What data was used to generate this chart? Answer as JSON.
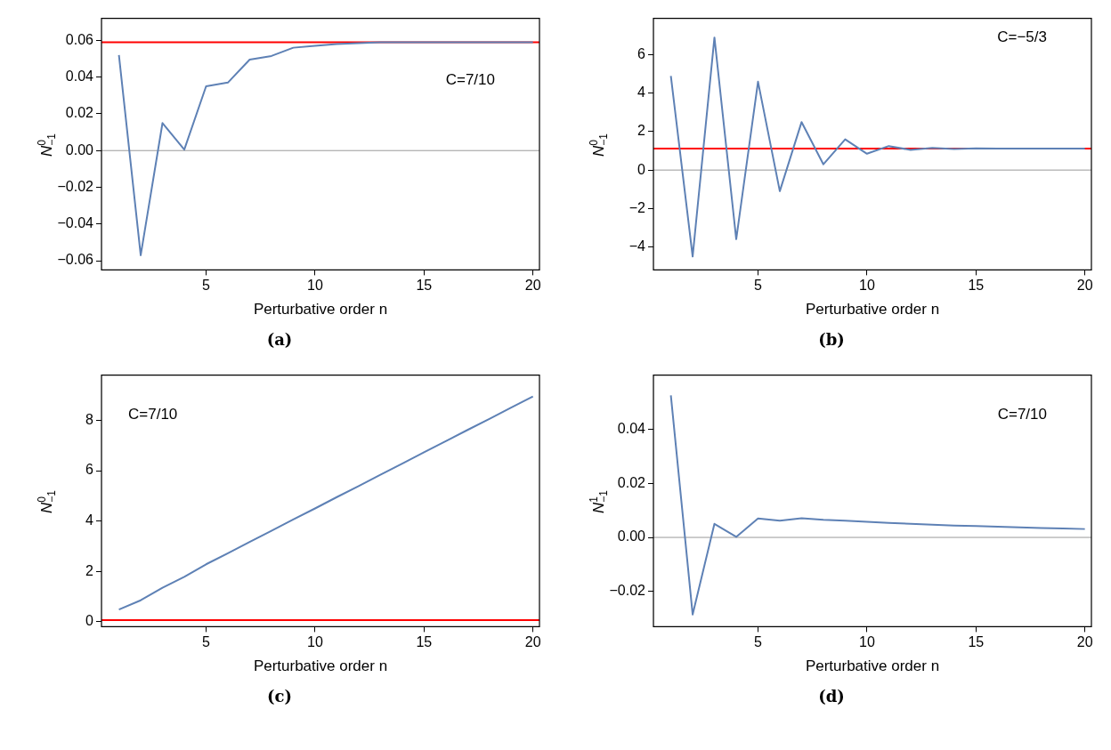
{
  "chart_data": [
    {
      "type": "line",
      "x": [
        1,
        2,
        3,
        4,
        5,
        6,
        7,
        8,
        9,
        10,
        11,
        12,
        13,
        14,
        15,
        16,
        17,
        18,
        19,
        20
      ],
      "xlabel": "Perturbative order n",
      "ylabel": "N$^{0}$$_{−1}$",
      "xlim": [
        0.2,
        20.3
      ],
      "xticks": [
        5,
        10,
        15,
        20
      ],
      "ylim": [
        -0.065,
        0.072
      ],
      "yticks": [
        {
          "value": -0.06,
          "label": "−0.06"
        },
        {
          "value": -0.04,
          "label": "−0.04"
        },
        {
          "value": -0.02,
          "label": "−0.02"
        },
        {
          "value": 0,
          "label": "0.00"
        },
        0.02,
        0.04,
        0.06
      ],
      "grid": false,
      "legend": false,
      "series": [
        {
          "color": "#5e81b5",
          "values": [
            0.052,
            -0.057,
            0.015,
            0.0005,
            0.035,
            0.037,
            0.0495,
            0.0515,
            0.056,
            0.057,
            0.058,
            0.0585,
            0.059,
            0.059,
            0.059,
            0.059,
            0.059,
            0.059,
            0.059,
            0.059
          ]
        }
      ],
      "ref_lines": [
        {
          "axis": "y",
          "value": 0,
          "color": "#999999"
        },
        {
          "axis": "y",
          "value": 0.059,
          "color": "#ff0000"
        }
      ],
      "annotations": [
        "C=7/10",
        "(a)"
      ]
    },
    {
      "type": "line",
      "x": [
        1,
        2,
        3,
        4,
        5,
        6,
        7,
        8,
        9,
        10,
        11,
        12,
        13,
        14,
        15,
        16,
        17,
        18,
        19,
        20
      ],
      "xlabel": "Perturbative order n",
      "ylabel": "N$^{0}$$_{−1}$",
      "xlim": [
        0.2,
        20.3
      ],
      "xticks": [
        5,
        10,
        15,
        20
      ],
      "ylim": [
        -5.2,
        7.9
      ],
      "yticks": [
        {
          "value": -4,
          "label": "−4"
        },
        {
          "value": -2,
          "label": "−2"
        },
        0,
        2,
        4,
        6
      ],
      "grid": false,
      "legend": false,
      "series": [
        {
          "color": "#5e81b5",
          "values": [
            4.9,
            -4.5,
            6.9,
            -3.6,
            4.6,
            -1.1,
            2.5,
            0.3,
            1.6,
            0.85,
            1.25,
            1.05,
            1.15,
            1.1,
            1.13,
            1.12,
            1.12,
            1.12,
            1.12,
            1.12
          ]
        }
      ],
      "ref_lines": [
        {
          "axis": "y",
          "value": 0,
          "color": "#999999"
        },
        {
          "axis": "y",
          "value": 1.12,
          "color": "#ff0000"
        }
      ],
      "annotations": [
        "C=−5/3",
        "(b)"
      ]
    },
    {
      "type": "line",
      "x": [
        1,
        2,
        3,
        4,
        5,
        6,
        7,
        8,
        9,
        10,
        11,
        12,
        13,
        14,
        15,
        16,
        17,
        18,
        19,
        20
      ],
      "xlabel": "Perturbative order n",
      "ylabel": "N$^{0}$$_{−1}$",
      "xlim": [
        0.2,
        20.3
      ],
      "xticks": [
        5,
        10,
        15,
        20
      ],
      "ylim": [
        -0.2,
        9.8
      ],
      "yticks": [
        0,
        2,
        4,
        6,
        8
      ],
      "grid": false,
      "legend": false,
      "series": [
        {
          "color": "#5e81b5",
          "values": [
            0.48,
            0.85,
            1.35,
            1.78,
            2.28,
            2.72,
            3.17,
            3.61,
            4.06,
            4.5,
            4.95,
            5.39,
            5.84,
            6.28,
            6.73,
            7.17,
            7.62,
            8.06,
            8.51,
            8.95
          ]
        }
      ],
      "ref_lines": [
        {
          "axis": "y",
          "value": 0.06,
          "color": "#ff0000"
        }
      ],
      "annotations": [
        "C=7/10",
        "(c)"
      ]
    },
    {
      "type": "line",
      "x": [
        1,
        2,
        3,
        4,
        5,
        6,
        7,
        8,
        9,
        10,
        11,
        12,
        13,
        14,
        15,
        16,
        17,
        18,
        19,
        20
      ],
      "xlabel": "Perturbative order n",
      "ylabel": "N$^{1}$$_{−1}$",
      "xlim": [
        0.2,
        20.3
      ],
      "xticks": [
        5,
        10,
        15,
        20
      ],
      "ylim": [
        -0.033,
        0.06
      ],
      "yticks": [
        {
          "value": -0.02,
          "label": "−0.02"
        },
        {
          "value": 0,
          "label": "0.00"
        },
        0.02,
        0.04
      ],
      "grid": false,
      "legend": false,
      "series": [
        {
          "color": "#5e81b5",
          "values": [
            0.0525,
            -0.0285,
            0.005,
            0.0002,
            0.007,
            0.0062,
            0.0071,
            0.0065,
            0.0062,
            0.0058,
            0.0054,
            0.005,
            0.0047,
            0.0044,
            0.0042,
            0.004,
            0.0037,
            0.0035,
            0.0033,
            0.0031
          ]
        }
      ],
      "ref_lines": [
        {
          "axis": "y",
          "value": 0,
          "color": "#999999"
        }
      ],
      "annotations": [
        "C=7/10",
        "(d)"
      ]
    }
  ]
}
